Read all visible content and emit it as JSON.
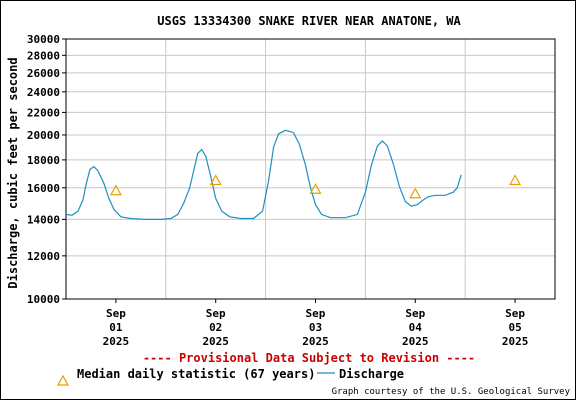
{
  "chart_data": {
    "type": "line",
    "title": "USGS 13334300 SNAKE RIVER NEAR ANATONE, WA",
    "ylabel": "Discharge, cubic feet per second",
    "ylim": [
      10000,
      30000
    ],
    "y_scale": "log",
    "yticks": [
      10000,
      12000,
      14000,
      16000,
      18000,
      20000,
      22000,
      24000,
      26000,
      28000,
      30000
    ],
    "xlim": [
      -0.5,
      4.4
    ],
    "xticks": [
      {
        "x": 0,
        "l1": "Sep",
        "l2": "01",
        "l3": "2025"
      },
      {
        "x": 1,
        "l1": "Sep",
        "l2": "02",
        "l3": "2025"
      },
      {
        "x": 2,
        "l1": "Sep",
        "l2": "03",
        "l3": "2025"
      },
      {
        "x": 3,
        "l1": "Sep",
        "l2": "04",
        "l3": "2025"
      },
      {
        "x": 4,
        "l1": "Sep",
        "l2": "05",
        "l3": "2025"
      }
    ],
    "grid": true,
    "series": [
      {
        "name": "Discharge",
        "color": "#1f8fbf",
        "points": [
          [
            -0.5,
            14300
          ],
          [
            -0.44,
            14250
          ],
          [
            -0.38,
            14500
          ],
          [
            -0.33,
            15200
          ],
          [
            -0.3,
            16200
          ],
          [
            -0.26,
            17300
          ],
          [
            -0.22,
            17500
          ],
          [
            -0.18,
            17200
          ],
          [
            -0.12,
            16300
          ],
          [
            -0.07,
            15300
          ],
          [
            -0.02,
            14600
          ],
          [
            0.05,
            14150
          ],
          [
            0.15,
            14050
          ],
          [
            0.3,
            14000
          ],
          [
            0.45,
            14000
          ],
          [
            0.55,
            14050
          ],
          [
            0.62,
            14300
          ],
          [
            0.68,
            15000
          ],
          [
            0.74,
            16000
          ],
          [
            0.78,
            17200
          ],
          [
            0.82,
            18500
          ],
          [
            0.86,
            18800
          ],
          [
            0.9,
            18300
          ],
          [
            0.95,
            16800
          ],
          [
            1.0,
            15300
          ],
          [
            1.06,
            14500
          ],
          [
            1.14,
            14150
          ],
          [
            1.25,
            14050
          ],
          [
            1.38,
            14050
          ],
          [
            1.47,
            14500
          ],
          [
            1.53,
            16500
          ],
          [
            1.58,
            19000
          ],
          [
            1.63,
            20100
          ],
          [
            1.7,
            20400
          ],
          [
            1.78,
            20200
          ],
          [
            1.84,
            19200
          ],
          [
            1.9,
            17600
          ],
          [
            1.95,
            16000
          ],
          [
            2.0,
            14900
          ],
          [
            2.06,
            14300
          ],
          [
            2.15,
            14100
          ],
          [
            2.3,
            14100
          ],
          [
            2.42,
            14300
          ],
          [
            2.5,
            15700
          ],
          [
            2.56,
            17600
          ],
          [
            2.62,
            19100
          ],
          [
            2.67,
            19500
          ],
          [
            2.72,
            19100
          ],
          [
            2.78,
            17700
          ],
          [
            2.84,
            16100
          ],
          [
            2.9,
            15100
          ],
          [
            2.96,
            14800
          ],
          [
            3.02,
            14900
          ],
          [
            3.08,
            15200
          ],
          [
            3.13,
            15400
          ],
          [
            3.2,
            15500
          ],
          [
            3.3,
            15500
          ],
          [
            3.38,
            15700
          ],
          [
            3.42,
            16000
          ],
          [
            3.46,
            16900
          ]
        ]
      },
      {
        "name": "Median daily statistic (67 years)",
        "color": "#e8a000",
        "marker": "triangle",
        "points": [
          [
            0.0,
            15800
          ],
          [
            1.0,
            16500
          ],
          [
            2.0,
            15900
          ],
          [
            3.0,
            15600
          ],
          [
            4.0,
            16500
          ]
        ]
      }
    ],
    "annotation": "---- Provisional Data Subject to Revision ----",
    "legend": {
      "position": "bottom",
      "median_label": "Median daily statistic (67 years)",
      "discharge_label": "Discharge"
    },
    "credit": "Graph courtesy of the U.S. Geological Survey"
  }
}
